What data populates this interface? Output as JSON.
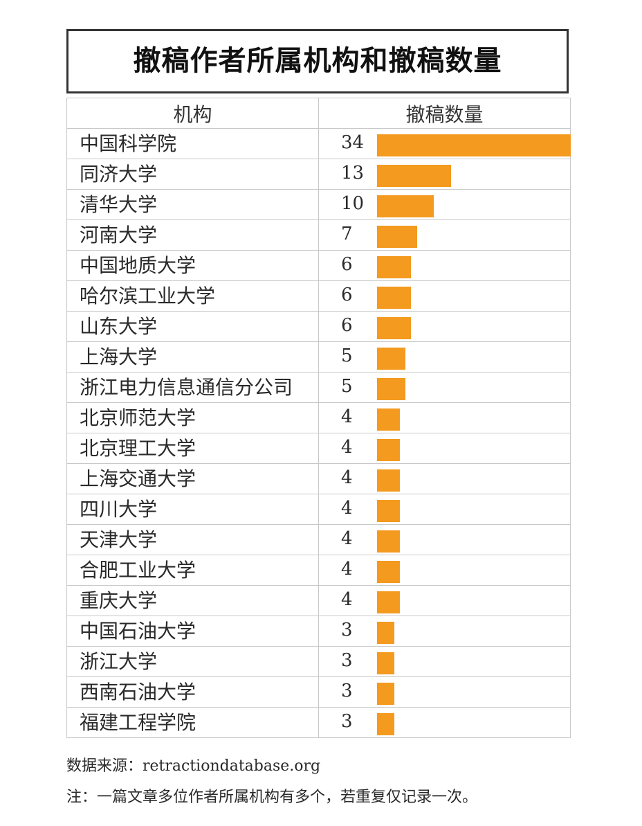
{
  "chart_data": {
    "type": "bar",
    "title": "撤稿作者所属机构和撤稿数量",
    "column_headers": {
      "institution": "机构",
      "count": "撤稿数量"
    },
    "categories": [
      "中国科学院",
      "同济大学",
      "清华大学",
      "河南大学",
      "中国地质大学",
      "哈尔滨工业大学",
      "山东大学",
      "上海大学",
      "浙江电力信息通信分公司",
      "北京师范大学",
      "北京理工大学",
      "上海交通大学",
      "四川大学",
      "天津大学",
      "合肥工业大学",
      "重庆大学",
      "中国石油大学",
      "浙江大学",
      "西南石油大学",
      "福建工程学院"
    ],
    "values": [
      34,
      13,
      10,
      7,
      6,
      6,
      6,
      5,
      5,
      4,
      4,
      4,
      4,
      4,
      4,
      4,
      3,
      3,
      3,
      3
    ],
    "bar_color": "#f39a1f",
    "xlim": [
      0,
      34
    ]
  },
  "footer": {
    "source": "数据来源：retractiondatabase.org",
    "note": "注：一篇文章多位作者所属机构有多个，若重复仅记录一次。"
  }
}
